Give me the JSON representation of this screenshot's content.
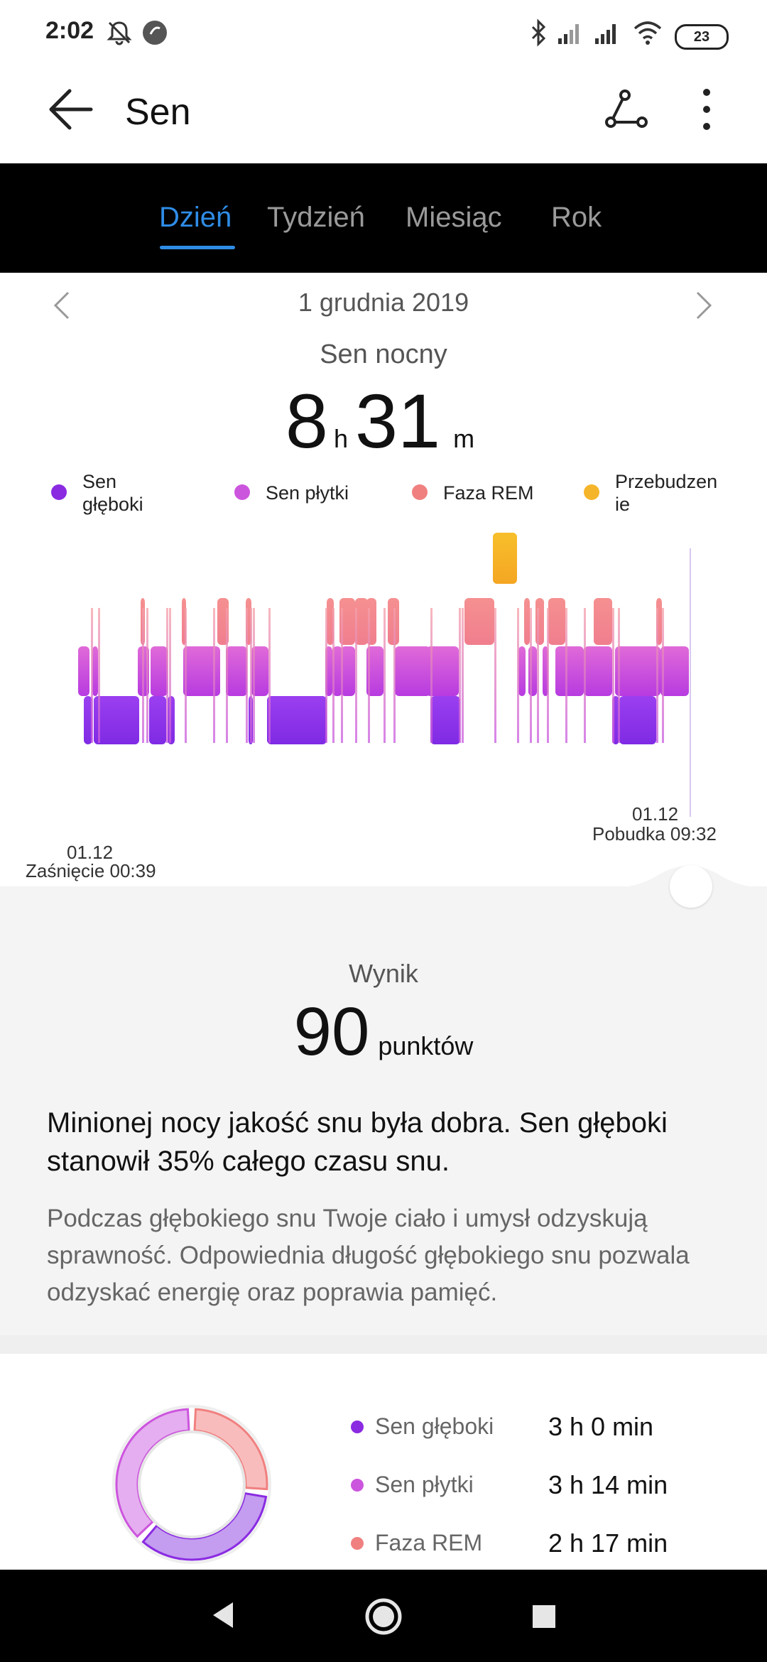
{
  "status_bar": {
    "time": "2:02",
    "battery": "23",
    "icons": [
      "mute-icon",
      "record-icon",
      "bluetooth-icon",
      "signal-icon",
      "signal-icon",
      "wifi-icon",
      "battery-icon"
    ]
  },
  "app_bar": {
    "title": "Sen",
    "back_icon": "back-arrow-icon",
    "route_icon": "route-icon",
    "more_icon": "more-vert-icon"
  },
  "tabs": [
    {
      "label": "Dzień",
      "active": true
    },
    {
      "label": "Tydzień",
      "active": false
    },
    {
      "label": "Miesiąc",
      "active": false
    },
    {
      "label": "Rok",
      "active": false
    }
  ],
  "date_nav": {
    "date": "1 grudnia 2019",
    "prev_icon": "chevron-left-icon",
    "next_icon": "chevron-right-icon"
  },
  "summary": {
    "label": "Sen nocny",
    "hours": "8",
    "hours_unit": "h",
    "minutes": "31",
    "minutes_unit": "m"
  },
  "legend": [
    {
      "label": "Sen głęboki",
      "color": "#8a2be2"
    },
    {
      "label": "Sen płytki",
      "color": "#cc55dd"
    },
    {
      "label": "Faza REM",
      "color": "#f08080"
    },
    {
      "label": "Przebudzenie",
      "color": "#f5b52a"
    }
  ],
  "chart_labels": {
    "start_date": "01.12",
    "start_text": "Zaśnięcie 00:39",
    "end_date": "01.12",
    "end_text": "Pobudka 09:32"
  },
  "score": {
    "label": "Wynik",
    "value": "90",
    "unit": "punktów"
  },
  "headline": "Minionej nocy jakość snu była dobra. Sen głęboki stanowił 35% całego czasu snu.",
  "description": "Podczas głębokiego snu Twoje ciało i umysł odzyskują sprawność. Odpowiednia długość głębokiego snu pozwala odzyskać energię oraz poprawia pamięć.",
  "stats": [
    {
      "label": "Sen głęboki",
      "value": "3 h 0 min",
      "color": "#8a2be2"
    },
    {
      "label": "Sen płytki",
      "value": "3 h 14 min",
      "color": "#cc55dd"
    },
    {
      "label": "Faza REM",
      "value": "2 h 17 min",
      "color": "#f08080"
    }
  ],
  "nav_bar": {
    "icons": [
      "nav-back-icon",
      "nav-home-icon",
      "nav-recents-icon"
    ]
  }
}
